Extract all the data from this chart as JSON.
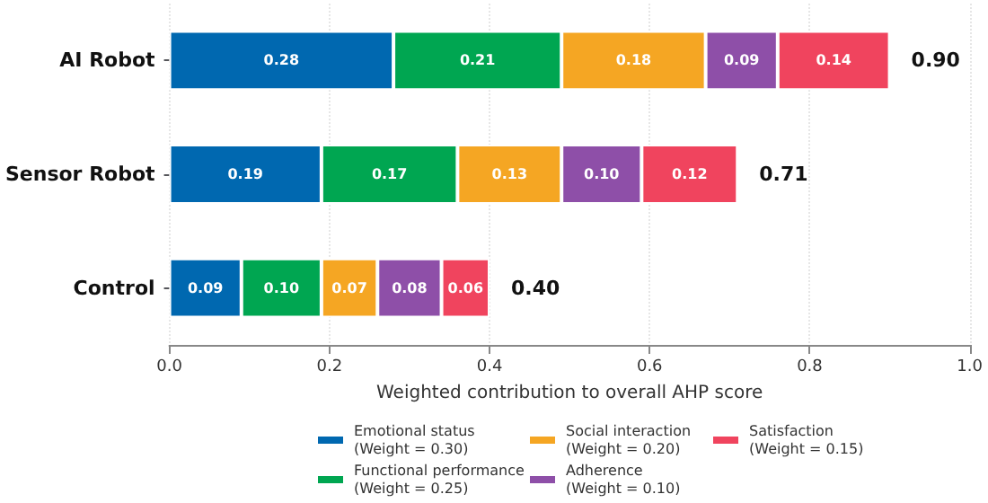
{
  "chart_data": {
    "type": "bar",
    "orientation": "horizontal",
    "stacked": true,
    "categories": [
      "AI Robot",
      "Sensor Robot",
      "Control"
    ],
    "series": [
      {
        "name": "Emotional status\n(Weight = 0.30)",
        "color": "#0068b0",
        "values": [
          0.28,
          0.19,
          0.09
        ],
        "value_labels": [
          "0.28",
          "0.19",
          "0.09"
        ]
      },
      {
        "name": "Functional performance\n(Weight = 0.25)",
        "color": "#00a651",
        "values": [
          0.21,
          0.17,
          0.1
        ],
        "value_labels": [
          "0.21",
          "0.17",
          "0.10"
        ]
      },
      {
        "name": "Social interaction\n(Weight = 0.20)",
        "color": "#f5a623",
        "values": [
          0.18,
          0.13,
          0.07
        ],
        "value_labels": [
          "0.18",
          "0.13",
          "0.07"
        ]
      },
      {
        "name": "Adherence\n(Weight = 0.10)",
        "color": "#8e4fa8",
        "values": [
          0.09,
          0.1,
          0.08
        ],
        "value_labels": [
          "0.09",
          "0.10",
          "0.08"
        ]
      },
      {
        "name": "Satisfaction\n(Weight = 0.15)",
        "color": "#f0445e",
        "values": [
          0.14,
          0.12,
          0.06
        ],
        "value_labels": [
          "0.14",
          "0.12",
          "0.06"
        ]
      }
    ],
    "xlim": [
      0,
      1
    ],
    "xticks": [
      {
        "value": 0,
        "label": "0.0"
      },
      0.2,
      0.4,
      0.6,
      0.8,
      {
        "value": 1,
        "label": "1.0"
      }
    ],
    "xlabel": "Weighted contribution to overall AHP score",
    "totals": [
      "0.90",
      "0.71",
      "0.40"
    ],
    "grid": "x",
    "legend": "bottom"
  }
}
